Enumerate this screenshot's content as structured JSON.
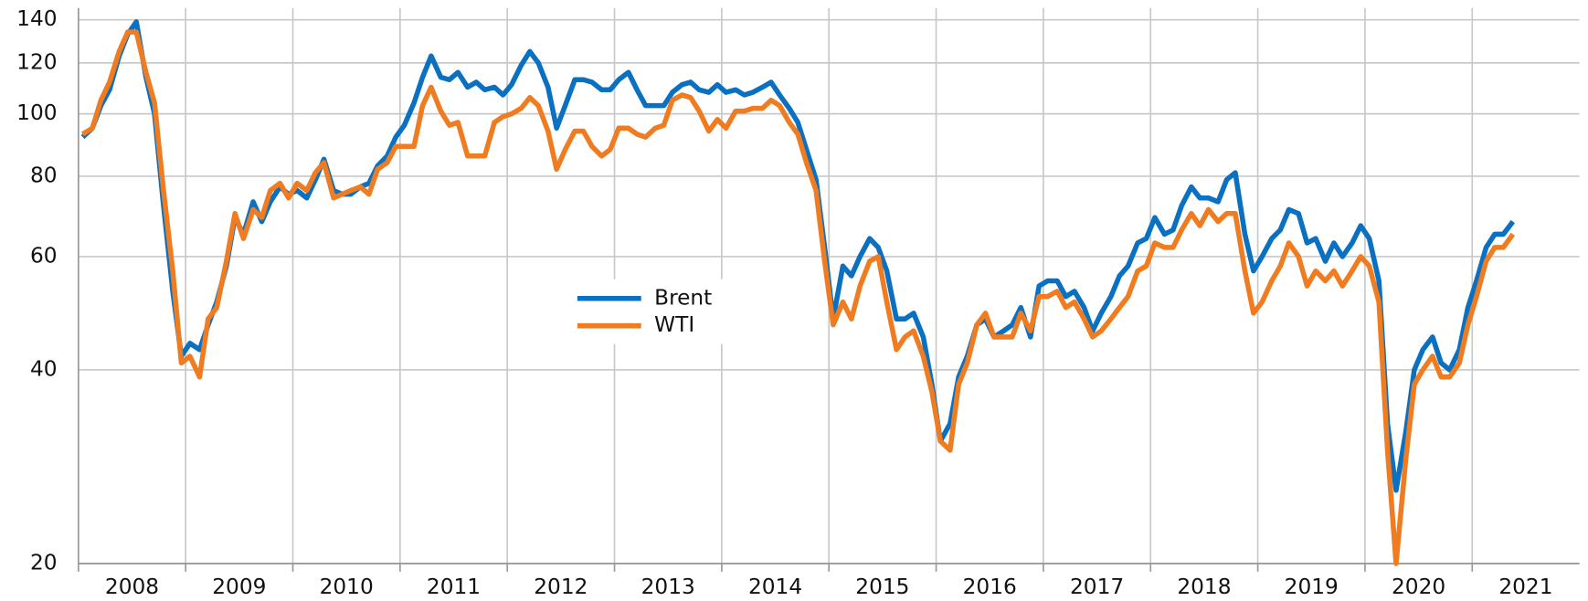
{
  "chart_data": {
    "type": "line",
    "yscale": "log",
    "grid": true,
    "xlim": [
      2008,
      2022
    ],
    "ylim": [
      20,
      146
    ],
    "yticks": [
      20,
      40,
      60,
      80,
      100,
      120,
      140
    ],
    "xticks": [
      {
        "value": 2008.5,
        "label": "2008"
      },
      {
        "value": 2009.5,
        "label": "2009"
      },
      {
        "value": 2010.5,
        "label": "2010"
      },
      {
        "value": 2011.5,
        "label": "2011"
      },
      {
        "value": 2012.5,
        "label": "2012"
      },
      {
        "value": 2013.5,
        "label": "2013"
      },
      {
        "value": 2014.5,
        "label": "2014"
      },
      {
        "value": 2015.5,
        "label": "2015"
      },
      {
        "value": 2016.5,
        "label": "2016"
      },
      {
        "value": 2017.5,
        "label": "2017"
      },
      {
        "value": 2018.5,
        "label": "2018"
      },
      {
        "value": 2019.5,
        "label": "2019"
      },
      {
        "value": 2020.5,
        "label": "2020"
      },
      {
        "value": 2021.5,
        "label": "2021"
      }
    ],
    "legend": "center",
    "x": [
      2008.04,
      2008.13,
      2008.21,
      2008.29,
      2008.38,
      2008.46,
      2008.54,
      2008.63,
      2008.71,
      2008.79,
      2008.88,
      2008.96,
      2009.04,
      2009.13,
      2009.21,
      2009.29,
      2009.38,
      2009.46,
      2009.54,
      2009.63,
      2009.71,
      2009.79,
      2009.88,
      2009.96,
      2010.04,
      2010.13,
      2010.21,
      2010.29,
      2010.38,
      2010.46,
      2010.54,
      2010.63,
      2010.71,
      2010.79,
      2010.88,
      2010.96,
      2011.04,
      2011.13,
      2011.21,
      2011.29,
      2011.38,
      2011.46,
      2011.54,
      2011.63,
      2011.71,
      2011.79,
      2011.88,
      2011.96,
      2012.04,
      2012.13,
      2012.21,
      2012.29,
      2012.38,
      2012.46,
      2012.54,
      2012.63,
      2012.71,
      2012.79,
      2012.88,
      2012.96,
      2013.04,
      2013.13,
      2013.21,
      2013.29,
      2013.38,
      2013.46,
      2013.54,
      2013.63,
      2013.71,
      2013.79,
      2013.88,
      2013.96,
      2014.04,
      2014.13,
      2014.21,
      2014.29,
      2014.38,
      2014.46,
      2014.54,
      2014.63,
      2014.71,
      2014.79,
      2014.88,
      2014.96,
      2015.04,
      2015.13,
      2015.21,
      2015.29,
      2015.38,
      2015.46,
      2015.54,
      2015.63,
      2015.71,
      2015.79,
      2015.88,
      2015.96,
      2016.04,
      2016.13,
      2016.21,
      2016.29,
      2016.38,
      2016.46,
      2016.54,
      2016.63,
      2016.71,
      2016.79,
      2016.88,
      2016.96,
      2017.04,
      2017.13,
      2017.21,
      2017.29,
      2017.38,
      2017.46,
      2017.54,
      2017.63,
      2017.71,
      2017.79,
      2017.88,
      2017.96,
      2018.04,
      2018.13,
      2018.21,
      2018.29,
      2018.38,
      2018.46,
      2018.54,
      2018.63,
      2018.71,
      2018.79,
      2018.88,
      2018.96,
      2019.04,
      2019.13,
      2019.21,
      2019.29,
      2019.38,
      2019.46,
      2019.54,
      2019.63,
      2019.71,
      2019.79,
      2019.88,
      2019.96,
      2020.04,
      2020.13,
      2020.21,
      2020.29,
      2020.38,
      2020.46,
      2020.54,
      2020.63,
      2020.71,
      2020.79,
      2020.88,
      2020.96,
      2021.04,
      2021.13,
      2021.21,
      2021.29,
      2021.38
    ],
    "series": [
      {
        "name": "Brent",
        "color": "#0a70c2",
        "values": [
          92,
          95,
          103,
          109,
          123,
          133,
          139,
          114,
          100,
          73,
          53,
          42,
          44,
          43,
          47,
          51,
          58,
          69,
          65,
          73,
          68,
          73,
          77,
          75,
          76,
          74,
          79,
          85,
          76,
          75,
          75,
          77,
          78,
          83,
          86,
          92,
          96,
          104,
          114,
          123,
          114,
          113,
          116,
          110,
          112,
          109,
          110,
          107,
          111,
          119,
          125,
          120,
          110,
          95,
          103,
          113,
          113,
          112,
          109,
          109,
          113,
          116,
          109,
          103,
          103,
          103,
          108,
          111,
          112,
          109,
          108,
          111,
          108,
          109,
          107,
          108,
          110,
          112,
          107,
          102,
          97,
          88,
          79,
          62,
          48,
          58,
          56,
          60,
          64,
          62,
          57,
          48,
          48,
          49,
          45,
          38,
          31,
          33,
          39,
          42,
          47,
          48,
          45,
          46,
          47,
          50,
          45,
          54,
          55,
          55,
          52,
          53,
          50,
          46,
          49,
          52,
          56,
          58,
          63,
          64,
          69,
          65,
          66,
          72,
          77,
          74,
          74,
          73,
          79,
          81,
          65,
          57,
          60,
          64,
          66,
          71,
          70,
          63,
          64,
          59,
          63,
          60,
          63,
          67,
          64,
          55,
          33,
          26,
          32,
          40,
          43,
          45,
          41,
          40,
          43,
          50,
          55,
          62,
          65,
          65,
          68
        ]
      },
      {
        "name": "WTI",
        "color": "#f07c22",
        "values": [
          93,
          95,
          105,
          112,
          125,
          134,
          134,
          116,
          104,
          77,
          57,
          41,
          42,
          39,
          48,
          50,
          59,
          70,
          64,
          71,
          69,
          76,
          78,
          74,
          78,
          76,
          81,
          84,
          74,
          75,
          76,
          77,
          75,
          82,
          84,
          89,
          89,
          89,
          103,
          110,
          101,
          96,
          97,
          86,
          86,
          86,
          97,
          99,
          100,
          102,
          106,
          103,
          94,
          82,
          88,
          94,
          94,
          89,
          86,
          88,
          95,
          95,
          93,
          92,
          95,
          96,
          105,
          107,
          106,
          101,
          94,
          98,
          95,
          101,
          101,
          102,
          102,
          105,
          103,
          97,
          93,
          84,
          76,
          59,
          47,
          51,
          48,
          54,
          59,
          60,
          51,
          43,
          45,
          46,
          42,
          37,
          31,
          30,
          38,
          41,
          47,
          49,
          45,
          45,
          45,
          49,
          46,
          52,
          52,
          53,
          50,
          51,
          48,
          45,
          46,
          48,
          50,
          52,
          57,
          58,
          63,
          62,
          62,
          66,
          70,
          67,
          71,
          68,
          70,
          70,
          57,
          49,
          51,
          55,
          58,
          63,
          60,
          54,
          57,
          55,
          57,
          54,
          57,
          60,
          58,
          51,
          30,
          20,
          29,
          38,
          40,
          42,
          39,
          39,
          41,
          47,
          52,
          59,
          62,
          62,
          65
        ]
      }
    ]
  }
}
